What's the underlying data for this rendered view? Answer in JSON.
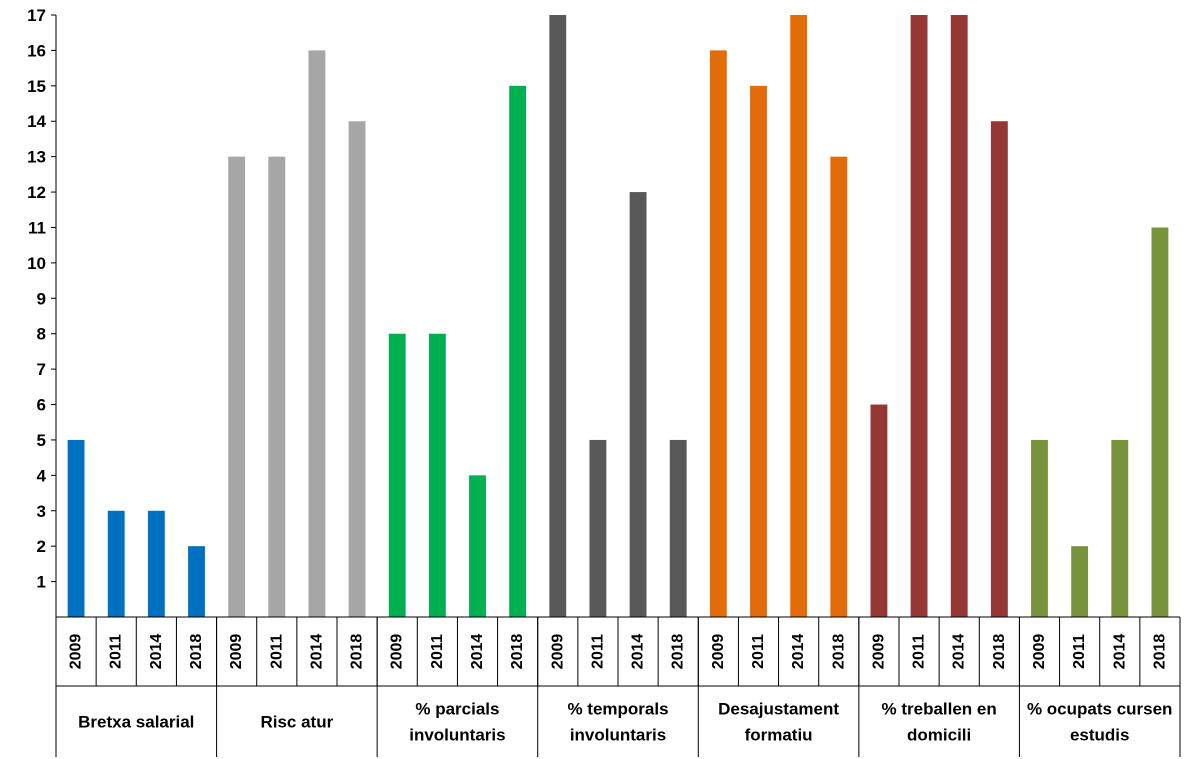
{
  "chart_data": {
    "type": "bar",
    "ylim": [
      0,
      17
    ],
    "yticks": [
      1,
      2,
      3,
      4,
      5,
      6,
      7,
      8,
      9,
      10,
      11,
      12,
      13,
      14,
      15,
      16,
      17
    ],
    "grid": false,
    "years": [
      "2009",
      "2011",
      "2014",
      "2018"
    ],
    "groups": [
      {
        "label": [
          "Bretxa salarial"
        ],
        "color": "#0070c0",
        "values": [
          5,
          3,
          3,
          2
        ]
      },
      {
        "label": [
          "Risc atur"
        ],
        "color": "#a6a6a6",
        "values": [
          13,
          13,
          16,
          14
        ]
      },
      {
        "label": [
          "% parcials",
          "involuntaris"
        ],
        "color": "#00b050",
        "values": [
          8,
          8,
          4,
          15
        ]
      },
      {
        "label": [
          "% temporals",
          "involuntaris"
        ],
        "color": "#595959",
        "values": [
          17,
          5,
          12,
          5
        ]
      },
      {
        "label": [
          "Desajustament",
          "formatiu"
        ],
        "color": "#e36c0a",
        "values": [
          16,
          15,
          17,
          13
        ]
      },
      {
        "label": [
          "% treballen en",
          "domicili"
        ],
        "color": "#953735",
        "values": [
          6,
          17,
          17,
          14
        ]
      },
      {
        "label": [
          "% ocupats cursen",
          "estudis"
        ],
        "color": "#77933c",
        "values": [
          5,
          2,
          5,
          11
        ]
      }
    ]
  }
}
